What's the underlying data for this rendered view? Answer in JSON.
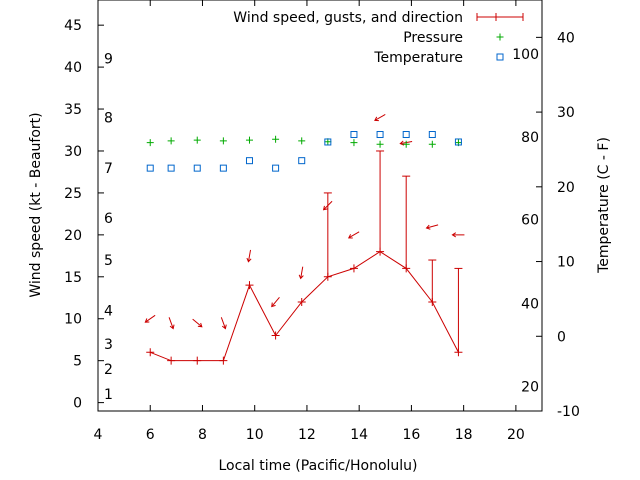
{
  "chart_data": {
    "type": "line",
    "xlabel": "Local time (Pacific/Honolulu)",
    "ylabel": "Wind speed (kt - Beaufort)",
    "y2label": "Temperature (C - F)",
    "xlim": [
      4,
      21
    ],
    "ylim": [
      -1,
      48
    ],
    "y2lim": [
      -10,
      45
    ],
    "x_ticks": [
      4,
      6,
      8,
      10,
      12,
      14,
      16,
      18,
      20
    ],
    "y_ticks": [
      0,
      5,
      10,
      15,
      20,
      25,
      30,
      35,
      40,
      45
    ],
    "y2_ticks": [
      -10,
      0,
      10,
      20,
      30,
      40
    ],
    "beaufort_labels": [
      {
        "label": "1",
        "y": 1
      },
      {
        "label": "2",
        "y": 4
      },
      {
        "label": "3",
        "y": 7
      },
      {
        "label": "4",
        "y": 11
      },
      {
        "label": "5",
        "y": 17
      },
      {
        "label": "6",
        "y": 22
      },
      {
        "label": "7",
        "y": 28
      },
      {
        "label": "8",
        "y": 34
      },
      {
        "label": "9",
        "y": 41
      }
    ],
    "fahrenheit_labels": [
      {
        "label": "20",
        "y": -6.7
      },
      {
        "label": "40",
        "y": 4.4
      },
      {
        "label": "60",
        "y": 15.6
      },
      {
        "label": "80",
        "y": 26.7
      },
      {
        "label": "100",
        "y": 37.8
      }
    ],
    "legend_position": "top-right",
    "series": [
      {
        "name": "Wind speed, gusts, and direction",
        "color": "#cc0000",
        "x": [
          6,
          6.8,
          7.8,
          8.8,
          9.8,
          10.8,
          11.8,
          12.8,
          13.8,
          14.8,
          15.8,
          16.8,
          17.8
        ],
        "speed": [
          6,
          5,
          5,
          5,
          14,
          8,
          12,
          15,
          16,
          18,
          16,
          12,
          6
        ],
        "gust": [
          6,
          5,
          5,
          5,
          14,
          8,
          12,
          25,
          16,
          30,
          27,
          17,
          16
        ],
        "direction_deg": [
          55,
          340,
          310,
          340,
          10,
          40,
          10,
          45,
          60,
          60,
          80,
          75,
          90
        ],
        "arrow_y": [
          10,
          9.5,
          9.5,
          9.5,
          17.5,
          12,
          15.5,
          23.5,
          20,
          34,
          31,
          21,
          20
        ]
      },
      {
        "name": "Pressure",
        "color": "#00aa00",
        "x": [
          6,
          6.8,
          7.8,
          8.8,
          9.8,
          10.8,
          11.8,
          12.8,
          13.8,
          14.8,
          15.8,
          16.8,
          17.8
        ],
        "plot_y": [
          31,
          31.2,
          31.3,
          31.2,
          31.3,
          31.4,
          31.2,
          31.1,
          31,
          30.8,
          30.8,
          30.8,
          31
        ]
      },
      {
        "name": "Temperature",
        "color": "#0066cc",
        "x": [
          6,
          6.8,
          7.8,
          8.8,
          9.8,
          10.8,
          11.8,
          12.8,
          13.8,
          14.8,
          15.8,
          16.8,
          17.8
        ],
        "values": [
          22.5,
          22.5,
          22.5,
          22.5,
          23.5,
          22.5,
          23.5,
          26,
          27,
          27,
          27,
          27,
          26
        ]
      }
    ]
  }
}
